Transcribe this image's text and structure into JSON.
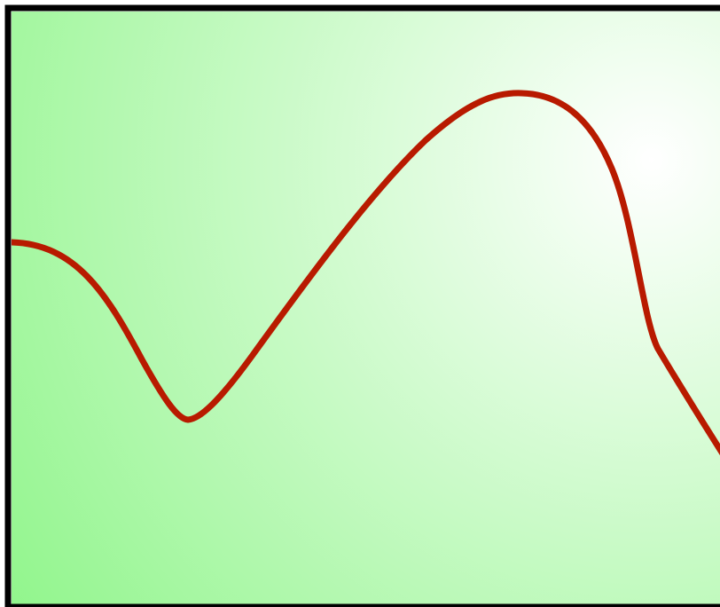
{
  "diagram": {
    "background": {
      "gradient_light": "#ffffff",
      "gradient_dark": "#8ff58a"
    },
    "frame_color": "#000000",
    "curve_color": "#b81a00"
  }
}
